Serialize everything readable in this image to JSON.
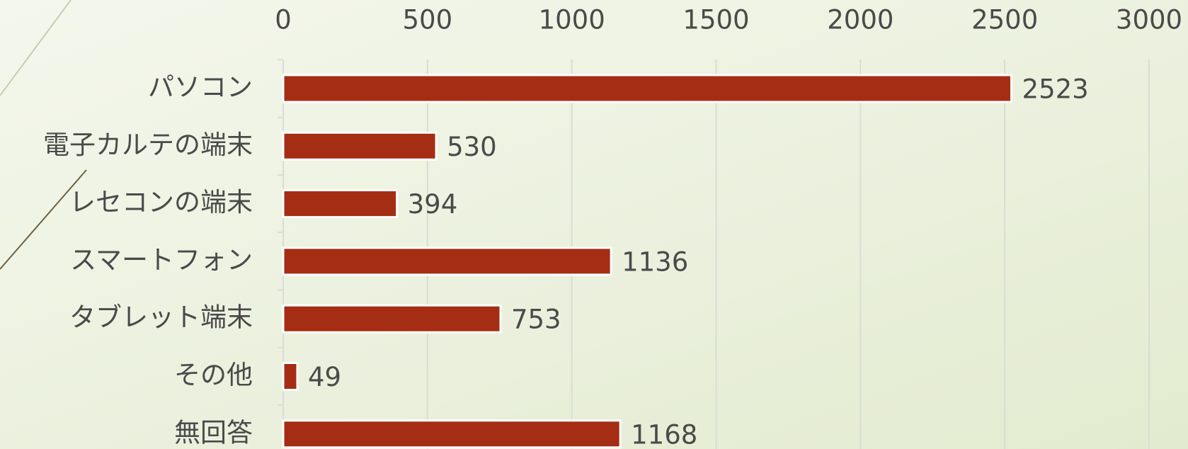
{
  "chart_data": {
    "type": "bar",
    "orientation": "horizontal",
    "categories": [
      "パソコン",
      "電子カルテの端末",
      "レセコンの端末",
      "スマートフォン",
      "タブレット端末",
      "その他",
      "無回答"
    ],
    "values": [
      2523,
      530,
      394,
      1136,
      753,
      49,
      1168
    ],
    "color": "#a52d13",
    "xlim": [
      0,
      3000
    ],
    "xticks": [
      0,
      500,
      1000,
      1500,
      2000,
      2500,
      3000
    ],
    "grid": true
  }
}
